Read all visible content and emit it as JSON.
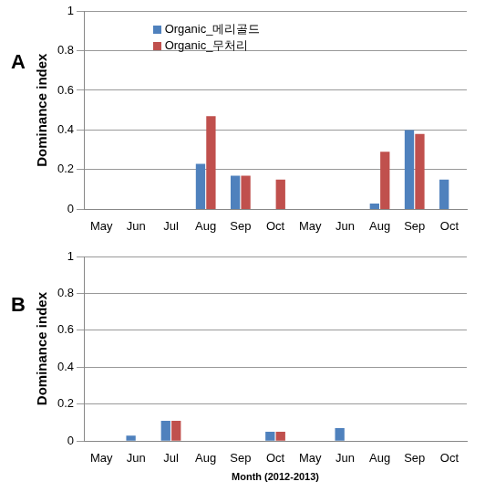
{
  "chart_data": [
    {
      "type": "bar",
      "title": "A",
      "y_label": "Dominance index",
      "categories": [
        "May",
        "Jun",
        "Jul",
        "Aug",
        "Sep",
        "Oct",
        "May",
        "Jun",
        "Aug",
        "Sep",
        "Oct"
      ],
      "series": [
        {
          "name": "Organic_메리골드",
          "color": "#4F81BD",
          "values": [
            0,
            0,
            0,
            0.23,
            0.17,
            0,
            0,
            0,
            0.03,
            0.4,
            0.15
          ]
        },
        {
          "name": "Organic_무처리",
          "color": "#C0504D",
          "values": [
            0,
            0,
            0,
            0.47,
            0.17,
            0.15,
            0,
            0,
            0.29,
            0.38,
            0
          ]
        }
      ],
      "ylim": [
        0,
        1
      ],
      "yticks": [
        0,
        0.2,
        0.4,
        0.6,
        0.8,
        1
      ],
      "grid": true,
      "legend": "upper left"
    },
    {
      "type": "bar",
      "title": "B",
      "y_label": "Dominance index",
      "x_label": "Month (2012-2013)",
      "categories": [
        "May",
        "Jun",
        "Jul",
        "Aug",
        "Sep",
        "Oct",
        "May",
        "Jun",
        "Aug",
        "Sep",
        "Oct"
      ],
      "series": [
        {
          "name": "Organic_메리골드",
          "color": "#4F81BD",
          "values": [
            0,
            0.03,
            0.11,
            0,
            0,
            0.05,
            0,
            0.07,
            0,
            0,
            0
          ]
        },
        {
          "name": "Organic_무처리",
          "color": "#C0504D",
          "values": [
            0,
            0,
            0.11,
            0,
            0,
            0.05,
            0,
            0,
            0,
            0,
            0
          ]
        }
      ],
      "ylim": [
        0,
        1
      ],
      "yticks": [
        0,
        0.2,
        0.4,
        0.6,
        0.8,
        1
      ],
      "grid": true
    }
  ]
}
